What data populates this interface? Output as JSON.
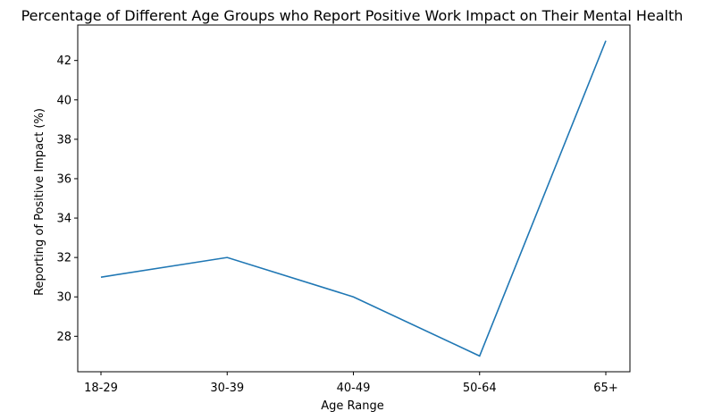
{
  "chart_data": {
    "type": "line",
    "title": "Percentage of Different Age Groups who Report Positive Work Impact on Their Mental Health",
    "xlabel": "Age Range",
    "ylabel": "Reporting of Positive Impact (%)",
    "categories": [
      "18-29",
      "30-39",
      "40-49",
      "50-64",
      "65+"
    ],
    "values": [
      31,
      32,
      30,
      27,
      43
    ],
    "ylim": [
      26.2,
      43.8
    ],
    "yticks": [
      28,
      30,
      32,
      34,
      36,
      38,
      40,
      42
    ],
    "grid": false,
    "line_color": "#1f77b4"
  }
}
